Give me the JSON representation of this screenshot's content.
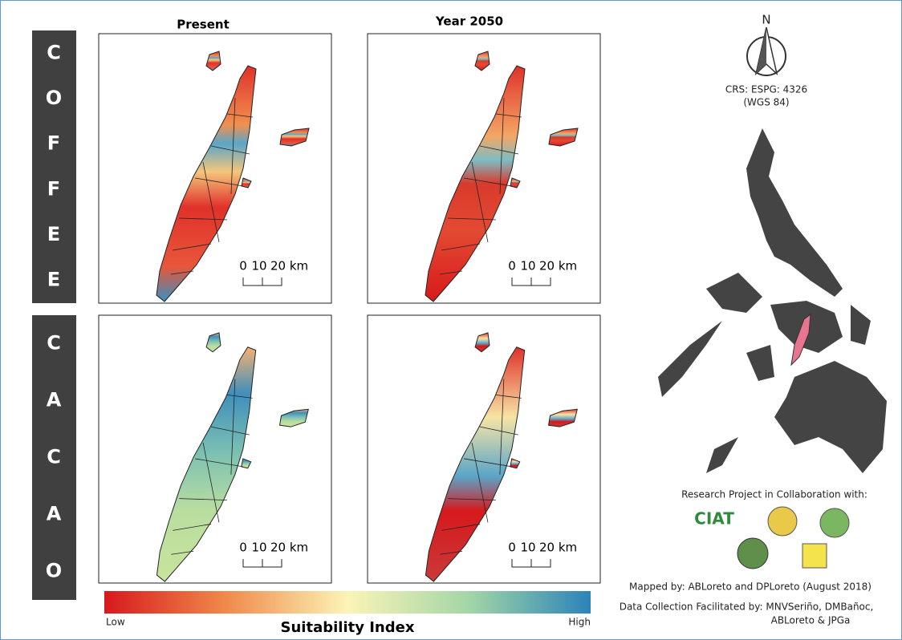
{
  "rows": [
    {
      "letters": [
        "C",
        "O",
        "F",
        "F",
        "E",
        "E"
      ]
    },
    {
      "letters": [
        "C",
        "A",
        "C",
        "A",
        "O"
      ]
    }
  ],
  "columns": [
    "Present",
    "Year 2050"
  ],
  "panels": [
    {
      "scale_labels": [
        "0",
        "10",
        "20 km"
      ]
    },
    {
      "scale_labels": [
        "0",
        "10",
        "20 km"
      ]
    },
    {
      "scale_labels": [
        "0",
        "10",
        "20 km"
      ]
    },
    {
      "scale_labels": [
        "0",
        "10",
        "20 km"
      ]
    }
  ],
  "north_arrow": "N",
  "crs": [
    "CRS: ESPG: 4326",
    "(WGS 84)"
  ],
  "collaboration": {
    "heading": "Research Project in Collaboration with:",
    "logo_text": "CIAT"
  },
  "credits": [
    "Mapped by: ABLoreto and DPLoreto (August 2018)",
    "Data Collection Facilitated by: MNVSeriño, DMBañoc,",
    "ABLoreto & JPGa"
  ],
  "legend": {
    "low": "Low",
    "title": "Suitability Index",
    "high": "High"
  }
}
